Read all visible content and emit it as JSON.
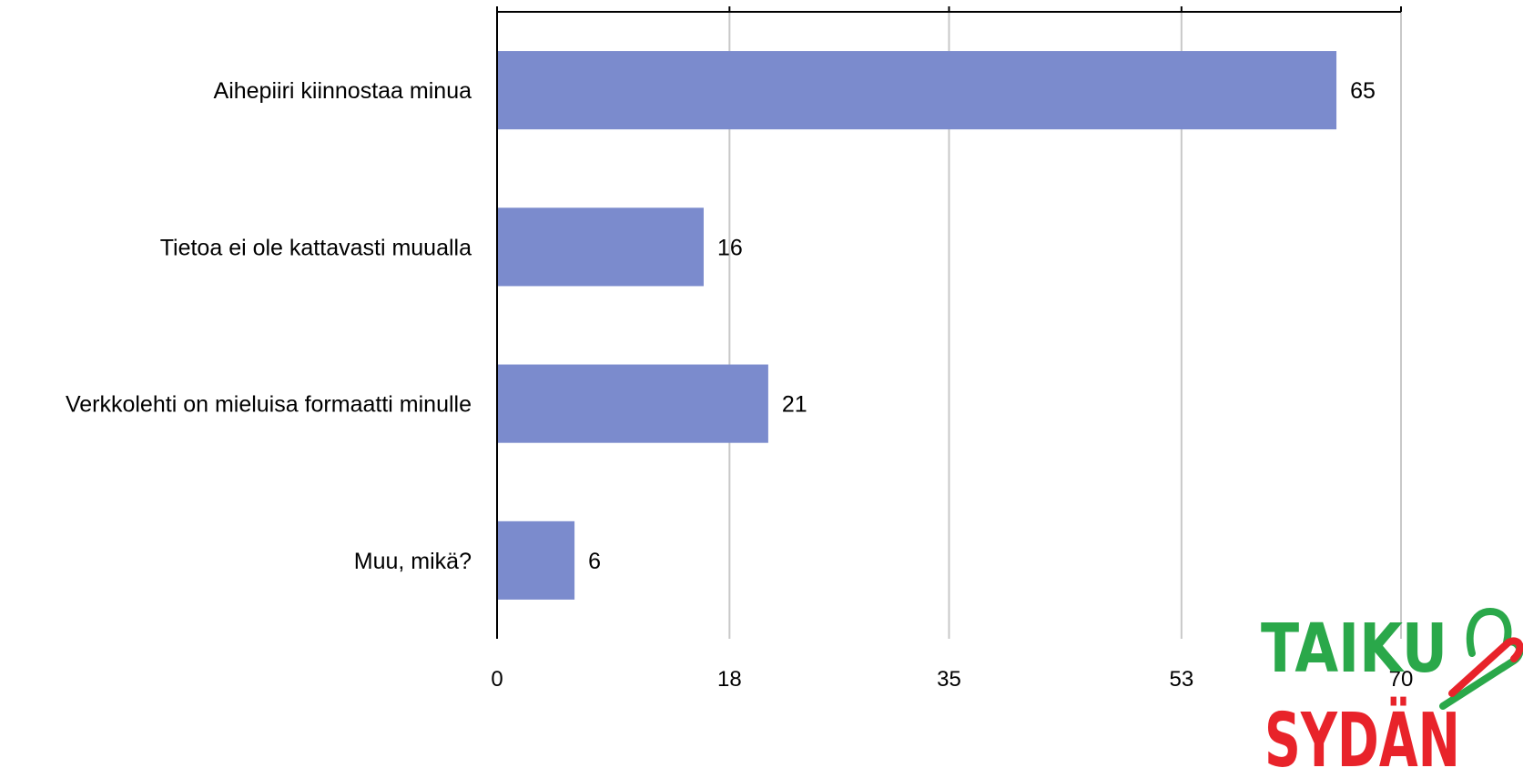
{
  "chart_data": {
    "type": "bar",
    "orientation": "horizontal",
    "categories": [
      "Aihepiiri kiinnostaa minua",
      "Tietoa ei ole kattavasti muualla",
      "Verkkolehti on mieluisa formaatti minulle",
      "Muu, mikä?"
    ],
    "values": [
      65,
      16,
      21,
      6
    ],
    "xlim": [
      0,
      70
    ],
    "ticks": [
      0,
      18,
      35,
      53,
      70
    ],
    "tick_labels": [
      "0",
      "18",
      "35",
      "53",
      "70"
    ],
    "grid": true,
    "legend": "none",
    "bar_color": "#7b8bcd",
    "title": "",
    "xlabel": "",
    "ylabel": ""
  },
  "logo": {
    "line1": "TAIKU",
    "line2": "SYDÄN",
    "colors": {
      "green": "#2aa84a",
      "red": "#e8232a"
    }
  }
}
